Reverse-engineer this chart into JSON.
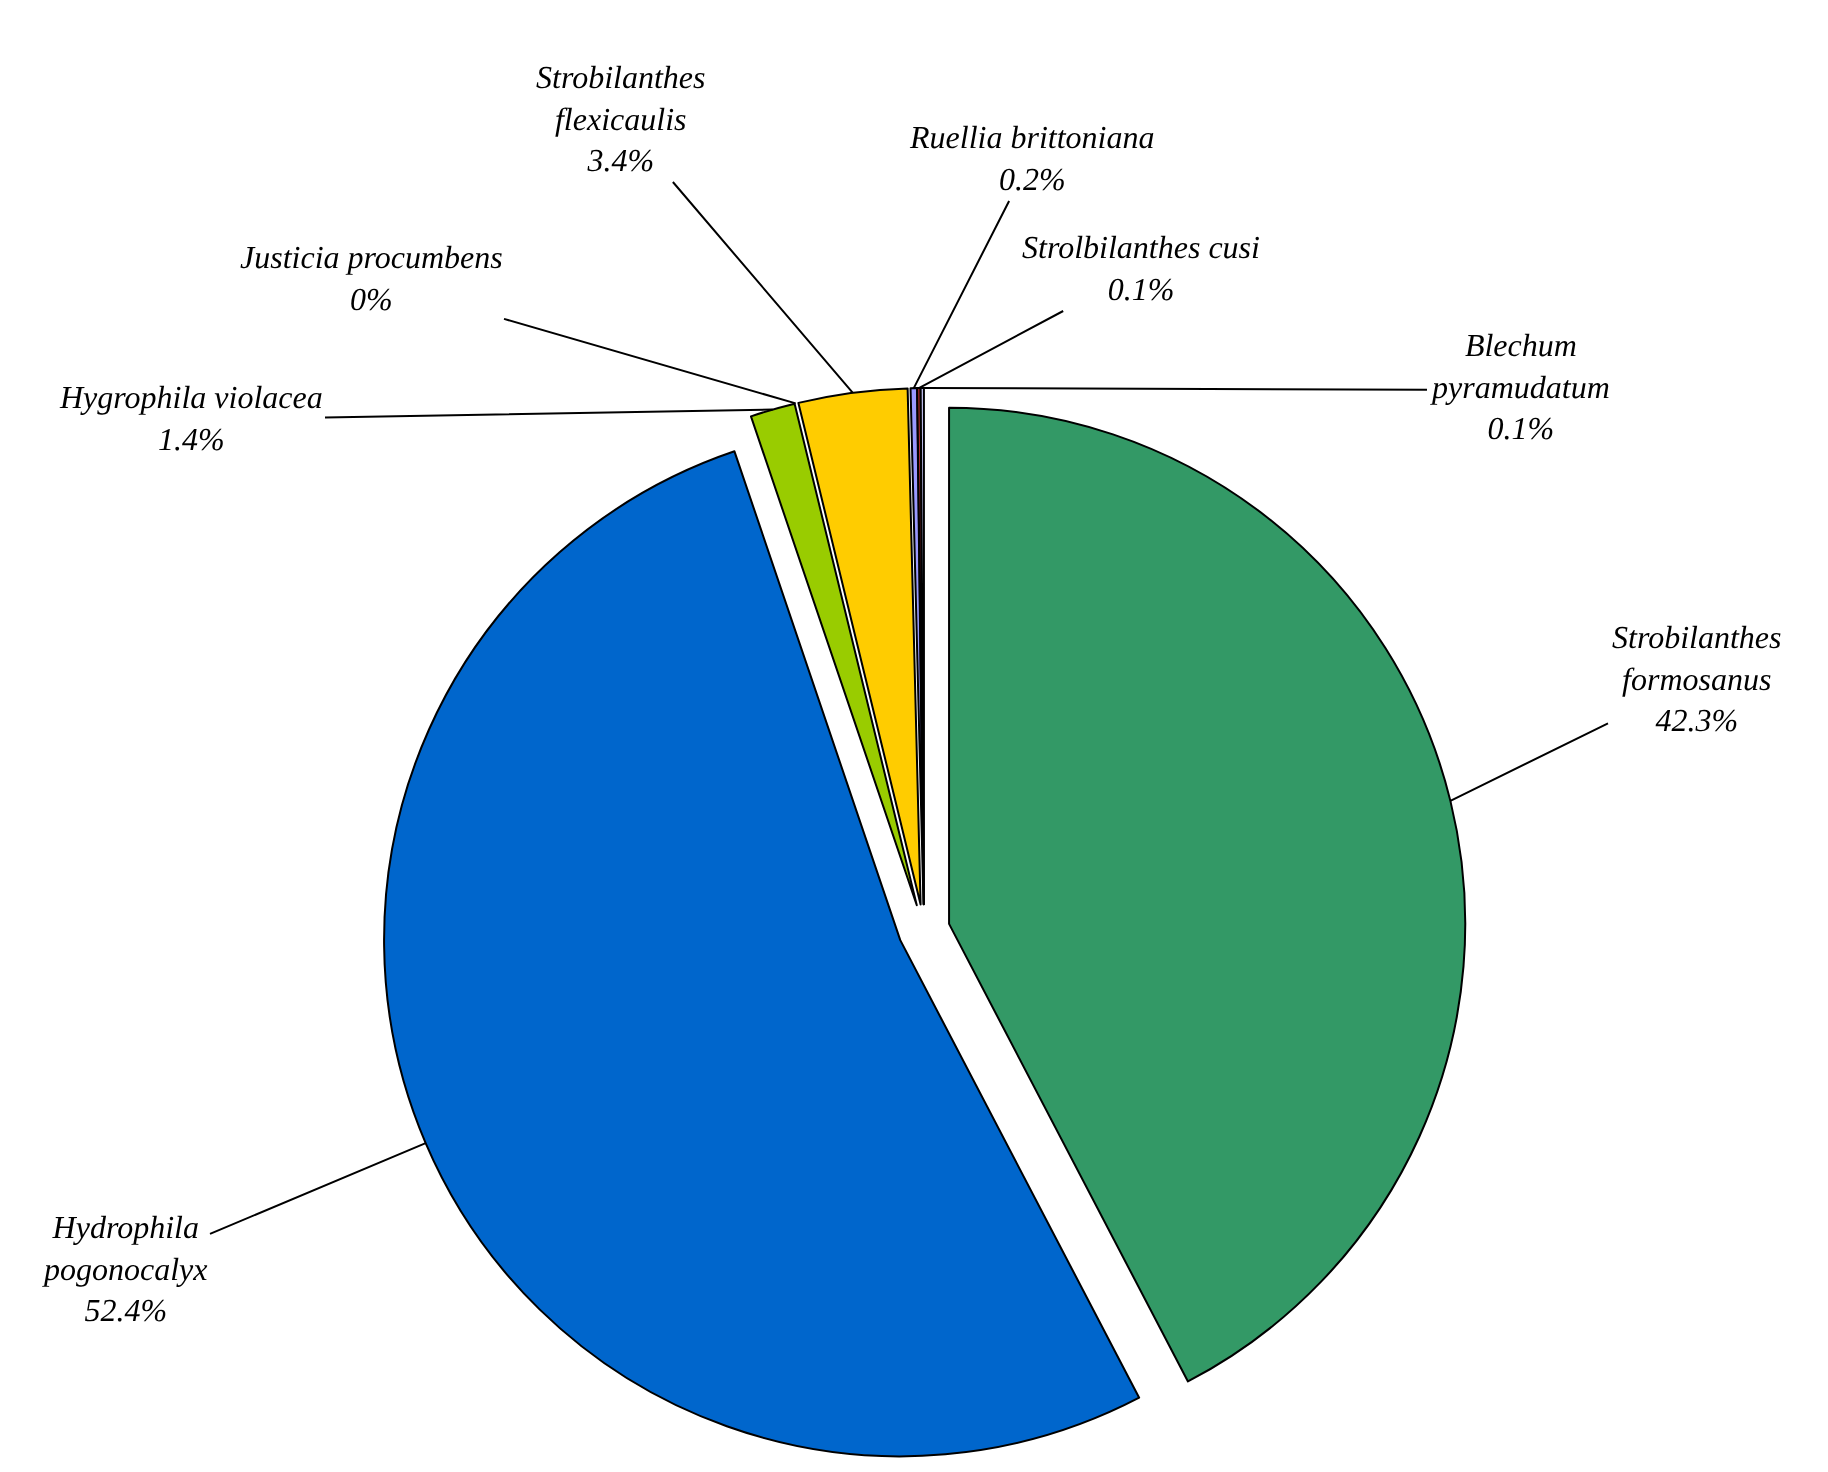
{
  "chart_data": {
    "type": "pie",
    "categories": [
      "Strobilanthes formosanus",
      "Hydrophila pogonocalyx",
      "Hygrophila violacea",
      "Justicia procumbens",
      "Strobilanthes flexicaulis",
      "Ruellia brittoniana",
      "Strolbilanthes cusi",
      "Blechum pyramudatum"
    ],
    "values": [
      42.3,
      52.4,
      1.4,
      0,
      3.4,
      0.2,
      0.1,
      0.1
    ],
    "value_labels": [
      "42.3%",
      "52.4%",
      "1.4%",
      "0%",
      "3.4%",
      "0.2%",
      "0.1%",
      "0.1%"
    ],
    "colors": [
      "#339966",
      "#0066cc",
      "#99cc00",
      "#ff9900",
      "#ffcc00",
      "#9999ff",
      "#cc3333",
      "#ccccff"
    ],
    "legend": false
  }
}
